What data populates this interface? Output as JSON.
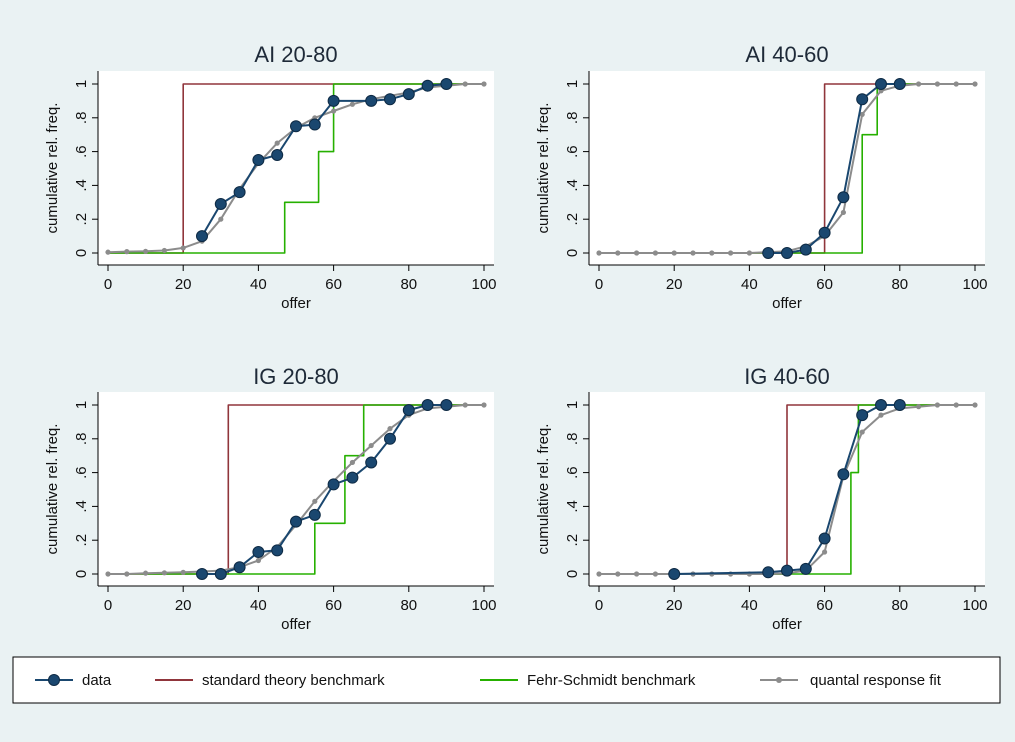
{
  "colors": {
    "data": "#1a476f",
    "standard": "#90353b",
    "fehr": "#26b000",
    "qr": "#8c8c8c",
    "background": "#eaf2f3",
    "plot": "#ffffff"
  },
  "legend": {
    "data": "data",
    "standard": "standard theory benchmark",
    "fehr": "Fehr-Schmidt benchmark",
    "qr": "quantal response fit"
  },
  "chart_data": [
    {
      "type": "line",
      "title": "AI 20-80",
      "xlabel": "offer",
      "ylabel": "cumulative rel. freq.",
      "xlim": [
        0,
        100
      ],
      "ylim": [
        0,
        1
      ],
      "xticks": [
        "0",
        "20",
        "40",
        "60",
        "80",
        "100"
      ],
      "yticks": [
        "0",
        ".2",
        ".4",
        ".6",
        ".8",
        "1"
      ],
      "series": [
        {
          "name": "data",
          "x": [
            25,
            30,
            35,
            40,
            45,
            50,
            55,
            60,
            70,
            75,
            80,
            85,
            90
          ],
          "y": [
            0.1,
            0.29,
            0.36,
            0.55,
            0.58,
            0.75,
            0.76,
            0.9,
            0.9,
            0.91,
            0.94,
            0.99,
            1.0
          ]
        },
        {
          "name": "standard theory benchmark",
          "x": [
            0,
            20,
            20,
            100
          ],
          "y": [
            0,
            0,
            1,
            1
          ]
        },
        {
          "name": "Fehr-Schmidt benchmark",
          "x": [
            0,
            47,
            47,
            56,
            56,
            60,
            60,
            100
          ],
          "y": [
            0,
            0,
            0.3,
            0.3,
            0.6,
            0.6,
            1.0,
            1.0
          ]
        },
        {
          "name": "quantal response fit",
          "x": [
            0,
            5,
            10,
            15,
            20,
            25,
            30,
            35,
            40,
            45,
            50,
            55,
            60,
            65,
            70,
            75,
            80,
            85,
            90,
            95,
            100
          ],
          "y": [
            0.005,
            0.008,
            0.01,
            0.015,
            0.03,
            0.07,
            0.2,
            0.38,
            0.53,
            0.65,
            0.74,
            0.8,
            0.84,
            0.88,
            0.91,
            0.93,
            0.95,
            0.98,
            0.99,
            1.0,
            1.0
          ]
        }
      ]
    },
    {
      "type": "line",
      "title": "AI 40-60",
      "xlabel": "offer",
      "ylabel": "cumulative rel. freq.",
      "xlim": [
        0,
        100
      ],
      "ylim": [
        0,
        1
      ],
      "xticks": [
        "0",
        "20",
        "40",
        "60",
        "80",
        "100"
      ],
      "yticks": [
        "0",
        ".2",
        ".4",
        ".6",
        ".8",
        "1"
      ],
      "series": [
        {
          "name": "data",
          "x": [
            45,
            50,
            55,
            60,
            65,
            70,
            75,
            80
          ],
          "y": [
            0.0,
            0.0,
            0.02,
            0.12,
            0.33,
            0.91,
            1.0,
            1.0
          ]
        },
        {
          "name": "standard theory benchmark",
          "x": [
            0,
            60,
            60,
            100
          ],
          "y": [
            0,
            0,
            1,
            1
          ]
        },
        {
          "name": "Fehr-Schmidt benchmark",
          "x": [
            0,
            70,
            70,
            74,
            74,
            100
          ],
          "y": [
            0,
            0,
            0.7,
            0.7,
            1.0,
            1.0
          ]
        },
        {
          "name": "quantal response fit",
          "x": [
            0,
            5,
            10,
            15,
            20,
            25,
            30,
            35,
            40,
            45,
            50,
            55,
            60,
            65,
            70,
            75,
            80,
            85,
            90,
            95,
            100
          ],
          "y": [
            0,
            0,
            0,
            0,
            0,
            0,
            0,
            0,
            0,
            0.005,
            0.01,
            0.04,
            0.1,
            0.24,
            0.82,
            0.96,
            0.99,
            1.0,
            1.0,
            1.0,
            1.0
          ]
        }
      ]
    },
    {
      "type": "line",
      "title": "IG 20-80",
      "xlabel": "offer",
      "ylabel": "cumulative rel. freq.",
      "xlim": [
        0,
        100
      ],
      "ylim": [
        0,
        1
      ],
      "xticks": [
        "0",
        "20",
        "40",
        "60",
        "80",
        "100"
      ],
      "yticks": [
        "0",
        ".2",
        ".4",
        ".6",
        ".8",
        "1"
      ],
      "series": [
        {
          "name": "data",
          "x": [
            25,
            30,
            35,
            40,
            45,
            50,
            55,
            60,
            65,
            70,
            75,
            80,
            85,
            90
          ],
          "y": [
            0.0,
            0.0,
            0.04,
            0.13,
            0.14,
            0.31,
            0.35,
            0.53,
            0.57,
            0.66,
            0.8,
            0.97,
            1.0,
            1.0
          ]
        },
        {
          "name": "standard theory benchmark",
          "x": [
            0,
            32,
            32,
            100
          ],
          "y": [
            0,
            0,
            1,
            1
          ]
        },
        {
          "name": "Fehr-Schmidt benchmark",
          "x": [
            0,
            55,
            55,
            63,
            63,
            68,
            68,
            100
          ],
          "y": [
            0,
            0,
            0.3,
            0.3,
            0.7,
            0.7,
            1.0,
            1.0
          ]
        },
        {
          "name": "quantal response fit",
          "x": [
            0,
            5,
            10,
            15,
            20,
            25,
            30,
            35,
            40,
            45,
            50,
            55,
            60,
            65,
            70,
            75,
            80,
            85,
            90,
            95,
            100
          ],
          "y": [
            0.0,
            0.0,
            0.005,
            0.007,
            0.01,
            0.015,
            0.02,
            0.04,
            0.08,
            0.16,
            0.29,
            0.43,
            0.55,
            0.66,
            0.76,
            0.86,
            0.94,
            0.98,
            0.99,
            1.0,
            1.0
          ]
        }
      ]
    },
    {
      "type": "line",
      "title": "IG 40-60",
      "xlabel": "offer",
      "ylabel": "cumulative rel. freq.",
      "xlim": [
        0,
        100
      ],
      "ylim": [
        0,
        1
      ],
      "xticks": [
        "0",
        "20",
        "40",
        "60",
        "80",
        "100"
      ],
      "yticks": [
        "0",
        ".2",
        ".4",
        ".6",
        ".8",
        "1"
      ],
      "series": [
        {
          "name": "data",
          "x": [
            20,
            45,
            50,
            55,
            60,
            65,
            70,
            75,
            80
          ],
          "y": [
            0.0,
            0.01,
            0.02,
            0.03,
            0.21,
            0.59,
            0.94,
            1.0,
            1.0
          ]
        },
        {
          "name": "standard theory benchmark",
          "x": [
            0,
            50,
            50,
            100
          ],
          "y": [
            0,
            0,
            1,
            1
          ]
        },
        {
          "name": "Fehr-Schmidt benchmark",
          "x": [
            0,
            67,
            67,
            69,
            69,
            100
          ],
          "y": [
            0,
            0,
            0.6,
            0.6,
            1.0,
            1.0
          ]
        },
        {
          "name": "quantal response fit",
          "x": [
            0,
            5,
            10,
            15,
            20,
            25,
            30,
            35,
            40,
            45,
            50,
            55,
            60,
            65,
            70,
            75,
            80,
            85,
            90,
            95,
            100
          ],
          "y": [
            0,
            0,
            0,
            0,
            0,
            0,
            0,
            0,
            0,
            0.0,
            0.005,
            0.02,
            0.13,
            0.58,
            0.84,
            0.94,
            0.98,
            0.99,
            1.0,
            1.0,
            1.0
          ]
        }
      ]
    }
  ]
}
